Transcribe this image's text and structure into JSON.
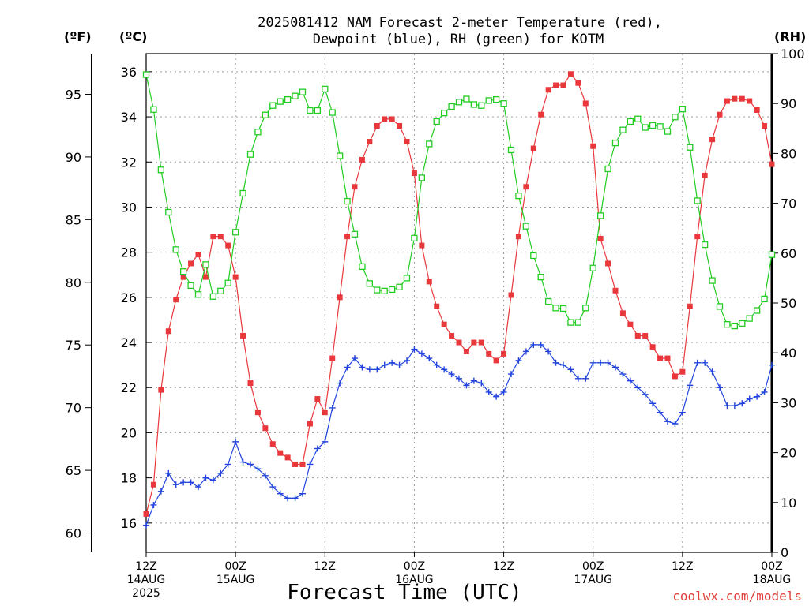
{
  "header": {
    "title_line1": "2025081412 NAM Forecast 2-meter Temperature (red),",
    "title_line2": "Dewpoint (blue), RH (green) for KOTM"
  },
  "units": {
    "fahrenheit": "(ºF)",
    "celsius": "(ºC)",
    "rh": "(RH)"
  },
  "credit": "coolwx.com/models",
  "colors": {
    "temperature": "#e8383c",
    "dewpoint": "#2244dd",
    "rh": "#22cc22",
    "grid": "#9a9a9a"
  },
  "chart_data": {
    "type": "line",
    "title": "2025081412 NAM Forecast 2-meter Temperature (red), Dewpoint (blue), RH (green) for KOTM",
    "xlabel": "Forecast Time (UTC)",
    "xlim_hours": [
      0,
      84
    ],
    "x_ticks": [
      {
        "hour": 0,
        "lines": [
          "12Z",
          "14AUG",
          "2025"
        ]
      },
      {
        "hour": 12,
        "lines": [
          "00Z",
          "15AUG"
        ]
      },
      {
        "hour": 24,
        "lines": [
          "12Z"
        ]
      },
      {
        "hour": 36,
        "lines": [
          "00Z",
          "16AUG"
        ]
      },
      {
        "hour": 48,
        "lines": [
          "12Z"
        ]
      },
      {
        "hour": 60,
        "lines": [
          "00Z",
          "17AUG"
        ]
      },
      {
        "hour": 72,
        "lines": [
          "12Z"
        ]
      },
      {
        "hour": 84,
        "lines": [
          "00Z",
          "18AUG"
        ]
      }
    ],
    "y_left_celsius": {
      "label": "(ºC)",
      "lim": [
        14.7,
        36.8
      ],
      "ticks": [
        16,
        18,
        20,
        22,
        24,
        26,
        28,
        30,
        32,
        34,
        36
      ]
    },
    "y_left_fahrenheit": {
      "label": "(ºF)",
      "ticks": [
        60,
        65,
        70,
        75,
        80,
        85,
        90,
        95
      ]
    },
    "y_right_rh": {
      "label": "(RH)",
      "lim": [
        0,
        100
      ],
      "ticks": [
        0,
        10,
        20,
        30,
        40,
        50,
        60,
        70,
        80,
        90,
        100
      ]
    },
    "grid": true,
    "series": [
      {
        "name": "Temperature (red)",
        "axis": "celsius",
        "marker": "filled-square",
        "values": [
          16.4,
          17.7,
          21.9,
          24.5,
          25.9,
          26.9,
          27.5,
          27.9,
          26.9,
          28.7,
          28.7,
          28.3,
          26.9,
          24.3,
          22.2,
          20.9,
          20.2,
          19.5,
          19.1,
          18.9,
          18.6,
          18.6,
          20.4,
          21.5,
          20.9,
          23.3,
          26.0,
          28.7,
          30.9,
          32.1,
          32.9,
          33.6,
          33.9,
          33.9,
          33.6,
          32.9,
          31.5,
          28.3,
          26.7,
          25.6,
          24.8,
          24.3,
          24.0,
          23.6,
          24.0,
          24.0,
          23.5,
          23.2,
          23.5,
          26.1,
          28.7,
          30.9,
          32.6,
          34.1,
          35.2,
          35.4,
          35.4,
          35.9,
          35.5,
          34.6,
          32.7,
          28.6,
          27.5,
          26.3,
          25.3,
          24.8,
          24.3,
          24.3,
          23.8,
          23.3,
          23.3,
          22.5,
          22.7,
          25.6,
          28.7,
          31.4,
          33.0,
          34.1,
          34.7,
          34.8,
          34.8,
          34.7,
          34.3,
          33.6,
          31.9
        ]
      },
      {
        "name": "Dewpoint (blue)",
        "axis": "celsius",
        "marker": "plus",
        "values": [
          15.9,
          16.8,
          17.4,
          18.2,
          17.7,
          17.8,
          17.8,
          17.6,
          18.0,
          17.9,
          18.2,
          18.6,
          19.6,
          18.7,
          18.6,
          18.4,
          18.1,
          17.6,
          17.3,
          17.1,
          17.1,
          17.3,
          18.6,
          19.3,
          19.6,
          21.1,
          22.2,
          22.9,
          23.3,
          22.9,
          22.8,
          22.8,
          23.0,
          23.1,
          23.0,
          23.2,
          23.7,
          23.5,
          23.3,
          23.0,
          22.8,
          22.6,
          22.4,
          22.1,
          22.3,
          22.2,
          21.8,
          21.6,
          21.8,
          22.6,
          23.2,
          23.6,
          23.9,
          23.9,
          23.6,
          23.1,
          23.0,
          22.8,
          22.4,
          22.4,
          23.1,
          23.1,
          23.1,
          22.9,
          22.6,
          22.3,
          22.0,
          21.7,
          21.3,
          20.9,
          20.5,
          20.4,
          20.9,
          22.1,
          23.1,
          23.1,
          22.7,
          22.0,
          21.2,
          21.2,
          21.3,
          21.5,
          21.6,
          21.8,
          23.0
        ]
      },
      {
        "name": "RH (green)",
        "axis": "rh",
        "marker": "open-square",
        "values": [
          95.8,
          88.8,
          76.7,
          68.2,
          60.7,
          56.3,
          53.5,
          51.7,
          57.7,
          51.3,
          52.4,
          54.0,
          64.2,
          72.0,
          79.8,
          84.3,
          87.7,
          89.6,
          90.4,
          90.8,
          91.5,
          92.3,
          88.6,
          88.6,
          92.9,
          88.2,
          79.5,
          70.4,
          63.8,
          57.3,
          53.9,
          52.6,
          52.4,
          52.7,
          53.2,
          55.0,
          63.0,
          75.1,
          81.9,
          86.4,
          88.1,
          89.4,
          90.3,
          90.9,
          89.8,
          89.6,
          90.6,
          90.8,
          90.0,
          80.7,
          71.5,
          65.4,
          59.5,
          55.2,
          50.3,
          49.0,
          48.9,
          46.1,
          46.1,
          49.0,
          57.0,
          67.5,
          76.9,
          82.1,
          84.7,
          86.4,
          86.9,
          85.2,
          85.6,
          85.4,
          84.4,
          87.3,
          88.9,
          81.2,
          70.5,
          61.7,
          54.5,
          49.3,
          45.7,
          45.4,
          45.9,
          46.9,
          48.5,
          50.8,
          59.7
        ]
      }
    ]
  }
}
